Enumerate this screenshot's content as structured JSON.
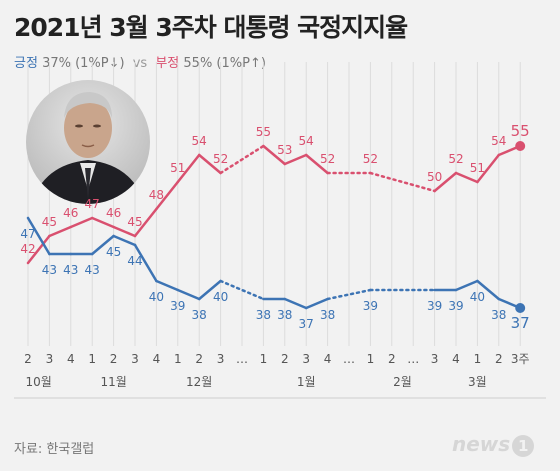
{
  "header": {
    "title": "2021년 3월 3주차 대통령 국정지지율",
    "pos_label": "긍정",
    "pos_value": "37% (1%P↓)",
    "vs": "vs",
    "neg_label": "부정",
    "neg_value": "55% (1%P↑)"
  },
  "colors": {
    "positive": "#3d74b4",
    "negative": "#d9506f"
  },
  "photo": {
    "alt": "portrait"
  },
  "chart_data": {
    "type": "line",
    "x": [
      "2",
      "3",
      "4",
      "1",
      "2",
      "3",
      "4",
      "1",
      "2",
      "3",
      "…",
      "1",
      "2",
      "3",
      "4",
      "…",
      "1",
      "2",
      "…",
      "3",
      "4",
      "1",
      "2",
      "3주"
    ],
    "month_labels": [
      {
        "label": "10월",
        "at": 0.5
      },
      {
        "label": "11월",
        "at": 4
      },
      {
        "label": "12월",
        "at": 8
      },
      {
        "label": "1월",
        "at": 13
      },
      {
        "label": "2월",
        "at": 17.5
      },
      {
        "label": "3월",
        "at": 21
      }
    ],
    "series": [
      {
        "name": "부정",
        "color": "#d9506f",
        "values": [
          42,
          45,
          46,
          47,
          46,
          45,
          48,
          51,
          54,
          52,
          null,
          55,
          53,
          54,
          52,
          null,
          52,
          null,
          null,
          50,
          52,
          51,
          54,
          55
        ]
      },
      {
        "name": "긍정",
        "color": "#3d74b4",
        "values": [
          47,
          43,
          43,
          43,
          45,
          44,
          40,
          39,
          38,
          40,
          null,
          38,
          38,
          37,
          38,
          null,
          39,
          null,
          null,
          39,
          39,
          40,
          38,
          37
        ]
      }
    ],
    "dotted_gaps": [
      [
        9,
        11
      ],
      [
        14,
        16
      ],
      [
        16,
        19
      ]
    ],
    "ylim": [
      35,
      57
    ]
  },
  "footer": {
    "source": "자료: 한국갤럽",
    "logo": "news",
    "logo_mark": "1"
  }
}
